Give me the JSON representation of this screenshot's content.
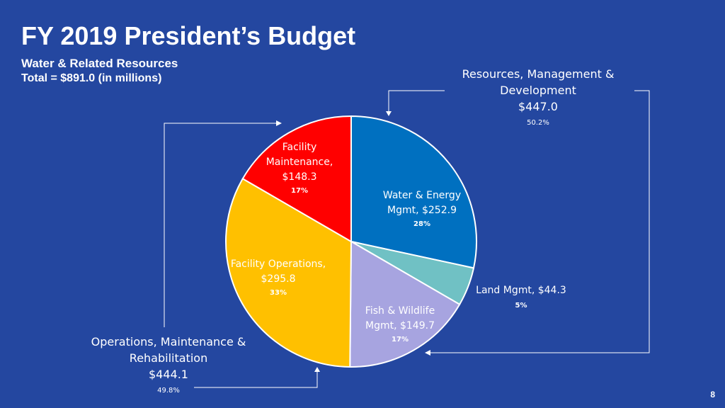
{
  "header": {
    "title": "FY 2019 President’s Budget",
    "subtitle": "Water & Related Resources",
    "total": "Total = $891.0 (in millions)"
  },
  "page_number": "8",
  "chart_data": {
    "type": "pie",
    "slices": [
      {
        "label_lines": [
          "Water & Energy",
          "Mgmt,  $252.9"
        ],
        "value": 252.9,
        "pct": "28%",
        "color": "#0070c0"
      },
      {
        "label_lines": [
          "Land Mgmt,  $44.3"
        ],
        "value": 44.3,
        "pct": "5%",
        "color": "#70c1c4"
      },
      {
        "label_lines": [
          "Fish & Wildlife",
          "Mgmt,  $149.7"
        ],
        "value": 149.7,
        "pct": "17%",
        "color": "#a7a4e0"
      },
      {
        "label_lines": [
          "Facility Operations,",
          "$295.8"
        ],
        "value": 295.8,
        "pct": "33%",
        "color": "#ffc000"
      },
      {
        "label_lines": [
          "Facility",
          "Maintenance,",
          "$148.3"
        ],
        "value": 148.3,
        "pct": "17%",
        "color": "#ff0000"
      }
    ],
    "groups": [
      {
        "label_lines": [
          "Resources, Management &",
          "Development",
          "$447.0"
        ],
        "pct": "50.2%"
      },
      {
        "label_lines": [
          "Operations, Maintenance &",
          "Rehabilitation",
          "$444.1"
        ],
        "pct": "49.8%"
      }
    ]
  }
}
